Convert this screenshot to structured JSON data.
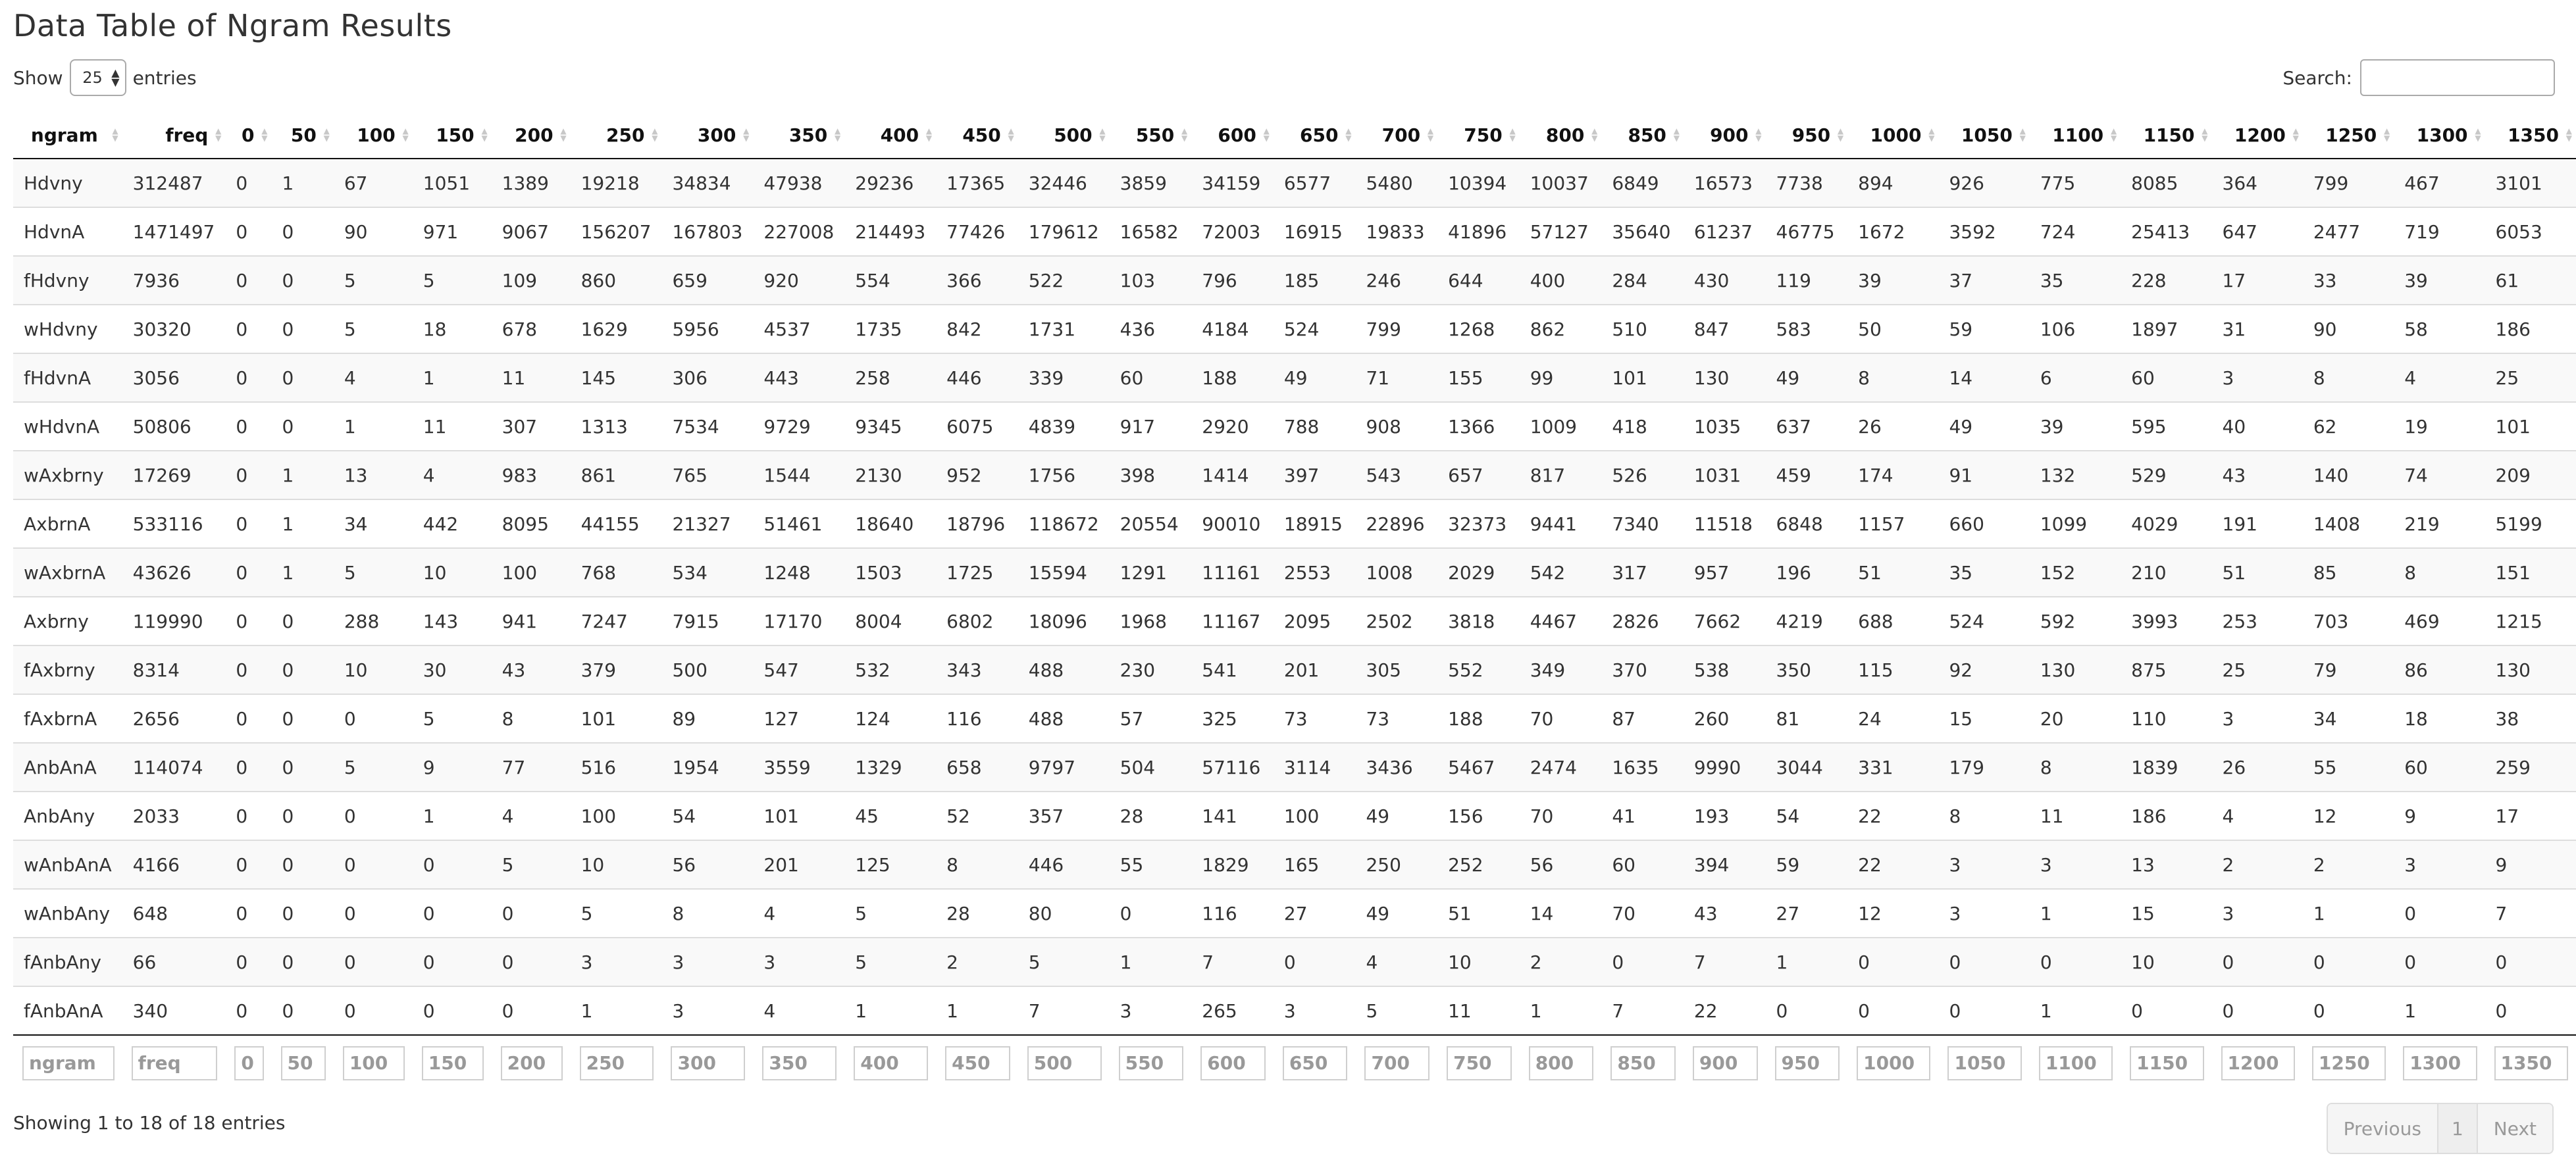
{
  "title": "Data Table of Ngram Results",
  "length": {
    "show_label": "Show",
    "value": "25",
    "entries_label": "entries"
  },
  "search": {
    "label": "Search:",
    "value": ""
  },
  "columns": [
    "ngram",
    "freq",
    "0",
    "50",
    "100",
    "150",
    "200",
    "250",
    "300",
    "350",
    "400",
    "450",
    "500",
    "550",
    "600",
    "650",
    "700",
    "750",
    "800",
    "850",
    "900",
    "950",
    "1000",
    "1050",
    "1100",
    "1150",
    "1200",
    "1250",
    "1300",
    "1350"
  ],
  "rows": [
    [
      "Hdvny",
      "312487",
      "0",
      "1",
      "67",
      "1051",
      "1389",
      "19218",
      "34834",
      "47938",
      "29236",
      "17365",
      "32446",
      "3859",
      "34159",
      "6577",
      "5480",
      "10394",
      "10037",
      "6849",
      "16573",
      "7738",
      "894",
      "926",
      "775",
      "8085",
      "364",
      "799",
      "467",
      "3101"
    ],
    [
      "HdvnA",
      "1471497",
      "0",
      "0",
      "90",
      "971",
      "9067",
      "156207",
      "167803",
      "227008",
      "214493",
      "77426",
      "179612",
      "16582",
      "72003",
      "16915",
      "19833",
      "41896",
      "57127",
      "35640",
      "61237",
      "46775",
      "1672",
      "3592",
      "724",
      "25413",
      "647",
      "2477",
      "719",
      "6053"
    ],
    [
      "fHdvny",
      "7936",
      "0",
      "0",
      "5",
      "5",
      "109",
      "860",
      "659",
      "920",
      "554",
      "366",
      "522",
      "103",
      "796",
      "185",
      "246",
      "644",
      "400",
      "284",
      "430",
      "119",
      "39",
      "37",
      "35",
      "228",
      "17",
      "33",
      "39",
      "61"
    ],
    [
      "wHdvny",
      "30320",
      "0",
      "0",
      "5",
      "18",
      "678",
      "1629",
      "5956",
      "4537",
      "1735",
      "842",
      "1731",
      "436",
      "4184",
      "524",
      "799",
      "1268",
      "862",
      "510",
      "847",
      "583",
      "50",
      "59",
      "106",
      "1897",
      "31",
      "90",
      "58",
      "186"
    ],
    [
      "fHdvnA",
      "3056",
      "0",
      "0",
      "4",
      "1",
      "11",
      "145",
      "306",
      "443",
      "258",
      "446",
      "339",
      "60",
      "188",
      "49",
      "71",
      "155",
      "99",
      "101",
      "130",
      "49",
      "8",
      "14",
      "6",
      "60",
      "3",
      "8",
      "4",
      "25"
    ],
    [
      "wHdvnA",
      "50806",
      "0",
      "0",
      "1",
      "11",
      "307",
      "1313",
      "7534",
      "9729",
      "9345",
      "6075",
      "4839",
      "917",
      "2920",
      "788",
      "908",
      "1366",
      "1009",
      "418",
      "1035",
      "637",
      "26",
      "49",
      "39",
      "595",
      "40",
      "62",
      "19",
      "101"
    ],
    [
      "wAxbrny",
      "17269",
      "0",
      "1",
      "13",
      "4",
      "983",
      "861",
      "765",
      "1544",
      "2130",
      "952",
      "1756",
      "398",
      "1414",
      "397",
      "543",
      "657",
      "817",
      "526",
      "1031",
      "459",
      "174",
      "91",
      "132",
      "529",
      "43",
      "140",
      "74",
      "209"
    ],
    [
      "AxbrnA",
      "533116",
      "0",
      "1",
      "34",
      "442",
      "8095",
      "44155",
      "21327",
      "51461",
      "18640",
      "18796",
      "118672",
      "20554",
      "90010",
      "18915",
      "22896",
      "32373",
      "9441",
      "7340",
      "11518",
      "6848",
      "1157",
      "660",
      "1099",
      "4029",
      "191",
      "1408",
      "219",
      "5199"
    ],
    [
      "wAxbrnA",
      "43626",
      "0",
      "1",
      "5",
      "10",
      "100",
      "768",
      "534",
      "1248",
      "1503",
      "1725",
      "15594",
      "1291",
      "11161",
      "2553",
      "1008",
      "2029",
      "542",
      "317",
      "957",
      "196",
      "51",
      "35",
      "152",
      "210",
      "51",
      "85",
      "8",
      "151"
    ],
    [
      "Axbrny",
      "119990",
      "0",
      "0",
      "288",
      "143",
      "941",
      "7247",
      "7915",
      "17170",
      "8004",
      "6802",
      "18096",
      "1968",
      "11167",
      "2095",
      "2502",
      "3818",
      "4467",
      "2826",
      "7662",
      "4219",
      "688",
      "524",
      "592",
      "3993",
      "253",
      "703",
      "469",
      "1215"
    ],
    [
      "fAxbrny",
      "8314",
      "0",
      "0",
      "10",
      "30",
      "43",
      "379",
      "500",
      "547",
      "532",
      "343",
      "488",
      "230",
      "541",
      "201",
      "305",
      "552",
      "349",
      "370",
      "538",
      "350",
      "115",
      "92",
      "130",
      "875",
      "25",
      "79",
      "86",
      "130"
    ],
    [
      "fAxbrnA",
      "2656",
      "0",
      "0",
      "0",
      "5",
      "8",
      "101",
      "89",
      "127",
      "124",
      "116",
      "488",
      "57",
      "325",
      "73",
      "73",
      "188",
      "70",
      "87",
      "260",
      "81",
      "24",
      "15",
      "20",
      "110",
      "3",
      "34",
      "18",
      "38"
    ],
    [
      "AnbAnA",
      "114074",
      "0",
      "0",
      "5",
      "9",
      "77",
      "516",
      "1954",
      "3559",
      "1329",
      "658",
      "9797",
      "504",
      "57116",
      "3114",
      "3436",
      "5467",
      "2474",
      "1635",
      "9990",
      "3044",
      "331",
      "179",
      "8",
      "1839",
      "26",
      "55",
      "60",
      "259"
    ],
    [
      "AnbAny",
      "2033",
      "0",
      "0",
      "0",
      "1",
      "4",
      "100",
      "54",
      "101",
      "45",
      "52",
      "357",
      "28",
      "141",
      "100",
      "49",
      "156",
      "70",
      "41",
      "193",
      "54",
      "22",
      "8",
      "11",
      "186",
      "4",
      "12",
      "9",
      "17"
    ],
    [
      "wAnbAnA",
      "4166",
      "0",
      "0",
      "0",
      "0",
      "5",
      "10",
      "56",
      "201",
      "125",
      "8",
      "446",
      "55",
      "1829",
      "165",
      "250",
      "252",
      "56",
      "60",
      "394",
      "59",
      "22",
      "3",
      "3",
      "13",
      "2",
      "2",
      "3",
      "9"
    ],
    [
      "wAnbAny",
      "648",
      "0",
      "0",
      "0",
      "0",
      "0",
      "5",
      "8",
      "4",
      "5",
      "28",
      "80",
      "0",
      "116",
      "27",
      "49",
      "51",
      "14",
      "70",
      "43",
      "27",
      "12",
      "3",
      "1",
      "15",
      "3",
      "1",
      "0",
      "7"
    ],
    [
      "fAnbAny",
      "66",
      "0",
      "0",
      "0",
      "0",
      "0",
      "3",
      "3",
      "3",
      "5",
      "2",
      "5",
      "1",
      "7",
      "0",
      "4",
      "10",
      "2",
      "0",
      "7",
      "1",
      "0",
      "0",
      "0",
      "10",
      "0",
      "0",
      "0",
      "0"
    ],
    [
      "fAnbAnA",
      "340",
      "0",
      "0",
      "0",
      "0",
      "0",
      "1",
      "3",
      "4",
      "1",
      "1",
      "7",
      "3",
      "265",
      "3",
      "5",
      "11",
      "1",
      "7",
      "22",
      "0",
      "0",
      "0",
      "1",
      "0",
      "0",
      "0",
      "1",
      "0"
    ]
  ],
  "info": "Showing 1 to 18 of 18 entries",
  "pagination": {
    "previous": "Previous",
    "page": "1",
    "next": "Next"
  },
  "colors": {
    "stripe": "#f9f9f9",
    "header_border": "#111111",
    "row_border": "#dddddd"
  }
}
